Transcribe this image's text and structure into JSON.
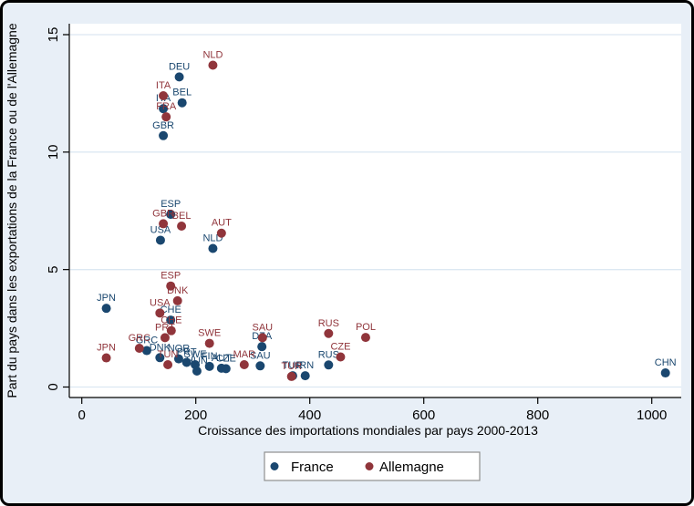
{
  "style": {
    "background": "#e8eff7",
    "plot_background": "#ffffff",
    "grid_color": "#dce8f2",
    "axis_color": "#000000",
    "tick_text_color": "#000000",
    "legend_border": "#8f8f8f",
    "legend_background": "#ffffff",
    "france_color": "#1a476f",
    "allemagne_color": "#90353b"
  },
  "chart_data": {
    "type": "scatter",
    "title": "",
    "xlabel": "Croissance des importations mondiales par pays 2000-2013",
    "ylabel": "Part du pays dans les exportations de la France ou de l'Allemagne",
    "xlim": [
      0,
      1052
    ],
    "ylim": [
      0,
      15.5
    ],
    "xticks": [
      0,
      200,
      400,
      600,
      800,
      1000
    ],
    "yticks": [
      0,
      5,
      10,
      15
    ],
    "grid": "horizontal-only",
    "marker_label_position": "above",
    "legend_position": "bottom-center",
    "legend": [
      {
        "label": "France",
        "color": "#1a476f"
      },
      {
        "label": "Allemagne",
        "color": "#90353b"
      }
    ],
    "series": [
      {
        "name": "France",
        "color": "#1a476f",
        "points": [
          [
            "JPN",
            43,
            3.35
          ],
          [
            "USA",
            138,
            6.25
          ],
          [
            "GBR",
            143,
            10.7
          ],
          [
            "ITA",
            143,
            11.85
          ],
          [
            "DEU",
            171,
            13.2
          ],
          [
            "BEL",
            176,
            12.1
          ],
          [
            "ESP",
            156,
            7.35
          ],
          [
            "NLD",
            230,
            5.9
          ],
          [
            "CHE",
            156,
            2.85
          ],
          [
            "GRC",
            114,
            1.55
          ],
          [
            "DNK",
            137,
            1.25
          ],
          [
            "NOR",
            170,
            1.2
          ],
          [
            "PRT",
            184,
            1.05
          ],
          [
            "SWE",
            199,
            0.95
          ],
          [
            "HUN",
            202,
            0.68
          ],
          [
            "FIN",
            224,
            0.88
          ],
          [
            "AUT",
            245,
            0.8
          ],
          [
            "CZE",
            253,
            0.78
          ],
          [
            "SAU",
            313,
            0.9
          ],
          [
            "DZA",
            316,
            1.72
          ],
          [
            "TUR",
            370,
            0.48
          ],
          [
            "IRN",
            392,
            0.48
          ],
          [
            "RUS",
            433,
            0.94
          ],
          [
            "CHN",
            1024,
            0.6
          ]
        ]
      },
      {
        "name": "Allemagne",
        "color": "#90353b",
        "points": [
          [
            "JPN",
            43,
            1.24
          ],
          [
            "GRC",
            101,
            1.65
          ],
          [
            "USA",
            137,
            3.15
          ],
          [
            "GBR",
            143,
            6.95
          ],
          [
            "ITA",
            143,
            12.4
          ],
          [
            "PRT",
            146,
            2.1
          ],
          [
            "FRA",
            148,
            11.5
          ],
          [
            "TUN",
            151,
            0.95
          ],
          [
            "ESP",
            156,
            4.3
          ],
          [
            "CHE",
            157,
            2.4
          ],
          [
            "DNK",
            168,
            3.67
          ],
          [
            "BEL",
            175,
            6.85
          ],
          [
            "SWE",
            224,
            1.86
          ],
          [
            "NLD",
            230,
            13.7
          ],
          [
            "AUT",
            245,
            6.55
          ],
          [
            "MAR",
            285,
            0.95
          ],
          [
            "SAU",
            317,
            2.1
          ],
          [
            "TUR",
            368,
            0.45
          ],
          [
            "RUS",
            433,
            2.28
          ],
          [
            "CZE",
            454,
            1.28
          ],
          [
            "POL",
            498,
            2.11
          ]
        ]
      }
    ]
  }
}
